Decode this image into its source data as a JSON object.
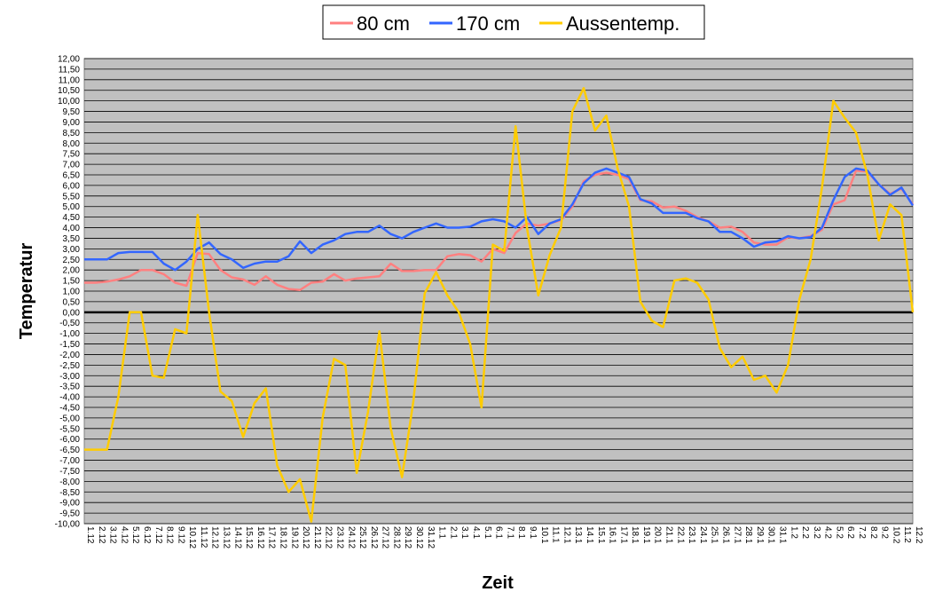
{
  "chart_data": {
    "type": "line",
    "title": "",
    "xlabel": "Zeit",
    "ylabel": "Temperatur",
    "ylim": [
      -10,
      12
    ],
    "ytick_step": 0.5,
    "grid": true,
    "legend_position": "top-center",
    "background_color": "#c0c0c0",
    "categories": [
      "1.12",
      "2.12",
      "3.12",
      "4.12",
      "5.12",
      "6.12",
      "7.12",
      "8.12",
      "9.12",
      "10.12",
      "11.12",
      "12.12",
      "13.12",
      "14.12",
      "15.12",
      "16.12",
      "17.12",
      "18.12",
      "19.12",
      "20.12",
      "21.12",
      "22.12",
      "23.12",
      "24.12",
      "25.12",
      "26.12",
      "27.12",
      "28.12",
      "29.12",
      "30.12",
      "31.12",
      "1.1",
      "2.1",
      "3.1",
      "4.1",
      "5.1",
      "6.1",
      "7.1",
      "8.1",
      "9.1",
      "10.1",
      "11.1",
      "12.1",
      "13.1",
      "14.1",
      "15.1",
      "16.1",
      "17.1",
      "18.1",
      "19.1",
      "20.1",
      "21.1",
      "22.1",
      "23.1",
      "24.1",
      "25.1",
      "26.1",
      "27.1",
      "28.1",
      "29.1",
      "30.1",
      "31.1",
      "1.2",
      "2.2",
      "3.2",
      "4.2",
      "5.2",
      "6.2",
      "7.2",
      "8.2",
      "9.2",
      "10.2",
      "11.2",
      "12.2"
    ],
    "series": [
      {
        "name": "80 cm",
        "color": "#ff8080",
        "values": [
          1.4,
          1.4,
          1.45,
          1.55,
          1.7,
          2.0,
          2.0,
          1.8,
          1.4,
          1.25,
          2.8,
          2.75,
          2.0,
          1.65,
          1.55,
          1.3,
          1.7,
          1.3,
          1.1,
          1.05,
          1.4,
          1.45,
          1.8,
          1.5,
          1.6,
          1.65,
          1.7,
          2.3,
          1.95,
          1.95,
          2.0,
          2.0,
          2.65,
          2.75,
          2.7,
          2.4,
          3.0,
          2.8,
          3.75,
          4.2,
          4.1,
          4.2,
          4.35,
          5.0,
          6.2,
          6.5,
          6.6,
          6.5,
          6.3,
          5.3,
          5.25,
          4.95,
          5.0,
          4.8,
          4.5,
          4.3,
          4.0,
          4.05,
          3.8,
          3.3,
          3.2,
          3.2,
          3.55,
          3.5,
          3.6,
          3.9,
          5.1,
          5.3,
          6.7,
          6.65,
          6.05,
          5.6,
          5.85,
          5.1
        ]
      },
      {
        "name": "170 cm",
        "color": "#3366ff",
        "values": [
          2.5,
          2.5,
          2.5,
          2.8,
          2.85,
          2.85,
          2.85,
          2.3,
          2.0,
          2.4,
          3.0,
          3.3,
          2.75,
          2.5,
          2.1,
          2.3,
          2.4,
          2.4,
          2.65,
          3.35,
          2.8,
          3.2,
          3.4,
          3.7,
          3.8,
          3.8,
          4.1,
          3.7,
          3.5,
          3.8,
          4.0,
          4.2,
          4.0,
          4.0,
          4.05,
          4.3,
          4.4,
          4.3,
          4.0,
          4.5,
          3.7,
          4.2,
          4.4,
          5.1,
          6.1,
          6.6,
          6.8,
          6.6,
          6.4,
          5.35,
          5.15,
          4.7,
          4.7,
          4.7,
          4.45,
          4.3,
          3.8,
          3.8,
          3.5,
          3.1,
          3.3,
          3.35,
          3.6,
          3.5,
          3.55,
          4.0,
          5.3,
          6.4,
          6.8,
          6.7,
          6.05,
          5.55,
          5.9,
          5.05
        ]
      },
      {
        "name": "Aussentemp.",
        "color": "#ffcc00",
        "values": [
          -6.5,
          -6.5,
          -6.5,
          -4.0,
          0.0,
          0.0,
          -3.0,
          -3.1,
          -0.8,
          -1.0,
          4.6,
          0.0,
          -3.75,
          -4.2,
          -5.9,
          -4.3,
          -3.6,
          -7.25,
          -8.5,
          -7.9,
          -9.9,
          -5.0,
          -2.2,
          -2.5,
          -7.6,
          -4.7,
          -0.9,
          -5.5,
          -7.8,
          -4.2,
          0.9,
          1.9,
          0.8,
          0.0,
          -1.5,
          -4.5,
          3.2,
          2.9,
          8.8,
          4.0,
          0.8,
          2.7,
          4.0,
          9.5,
          10.6,
          8.6,
          9.3,
          6.8,
          5.0,
          0.5,
          -0.4,
          -0.7,
          1.5,
          1.6,
          1.4,
          0.6,
          -1.7,
          -2.6,
          -2.1,
          -3.2,
          -3.0,
          -3.8,
          -2.5,
          0.6,
          2.5,
          5.9,
          10.0,
          9.2,
          8.5,
          6.5,
          3.4,
          5.1,
          4.6,
          0.0
        ]
      }
    ]
  }
}
